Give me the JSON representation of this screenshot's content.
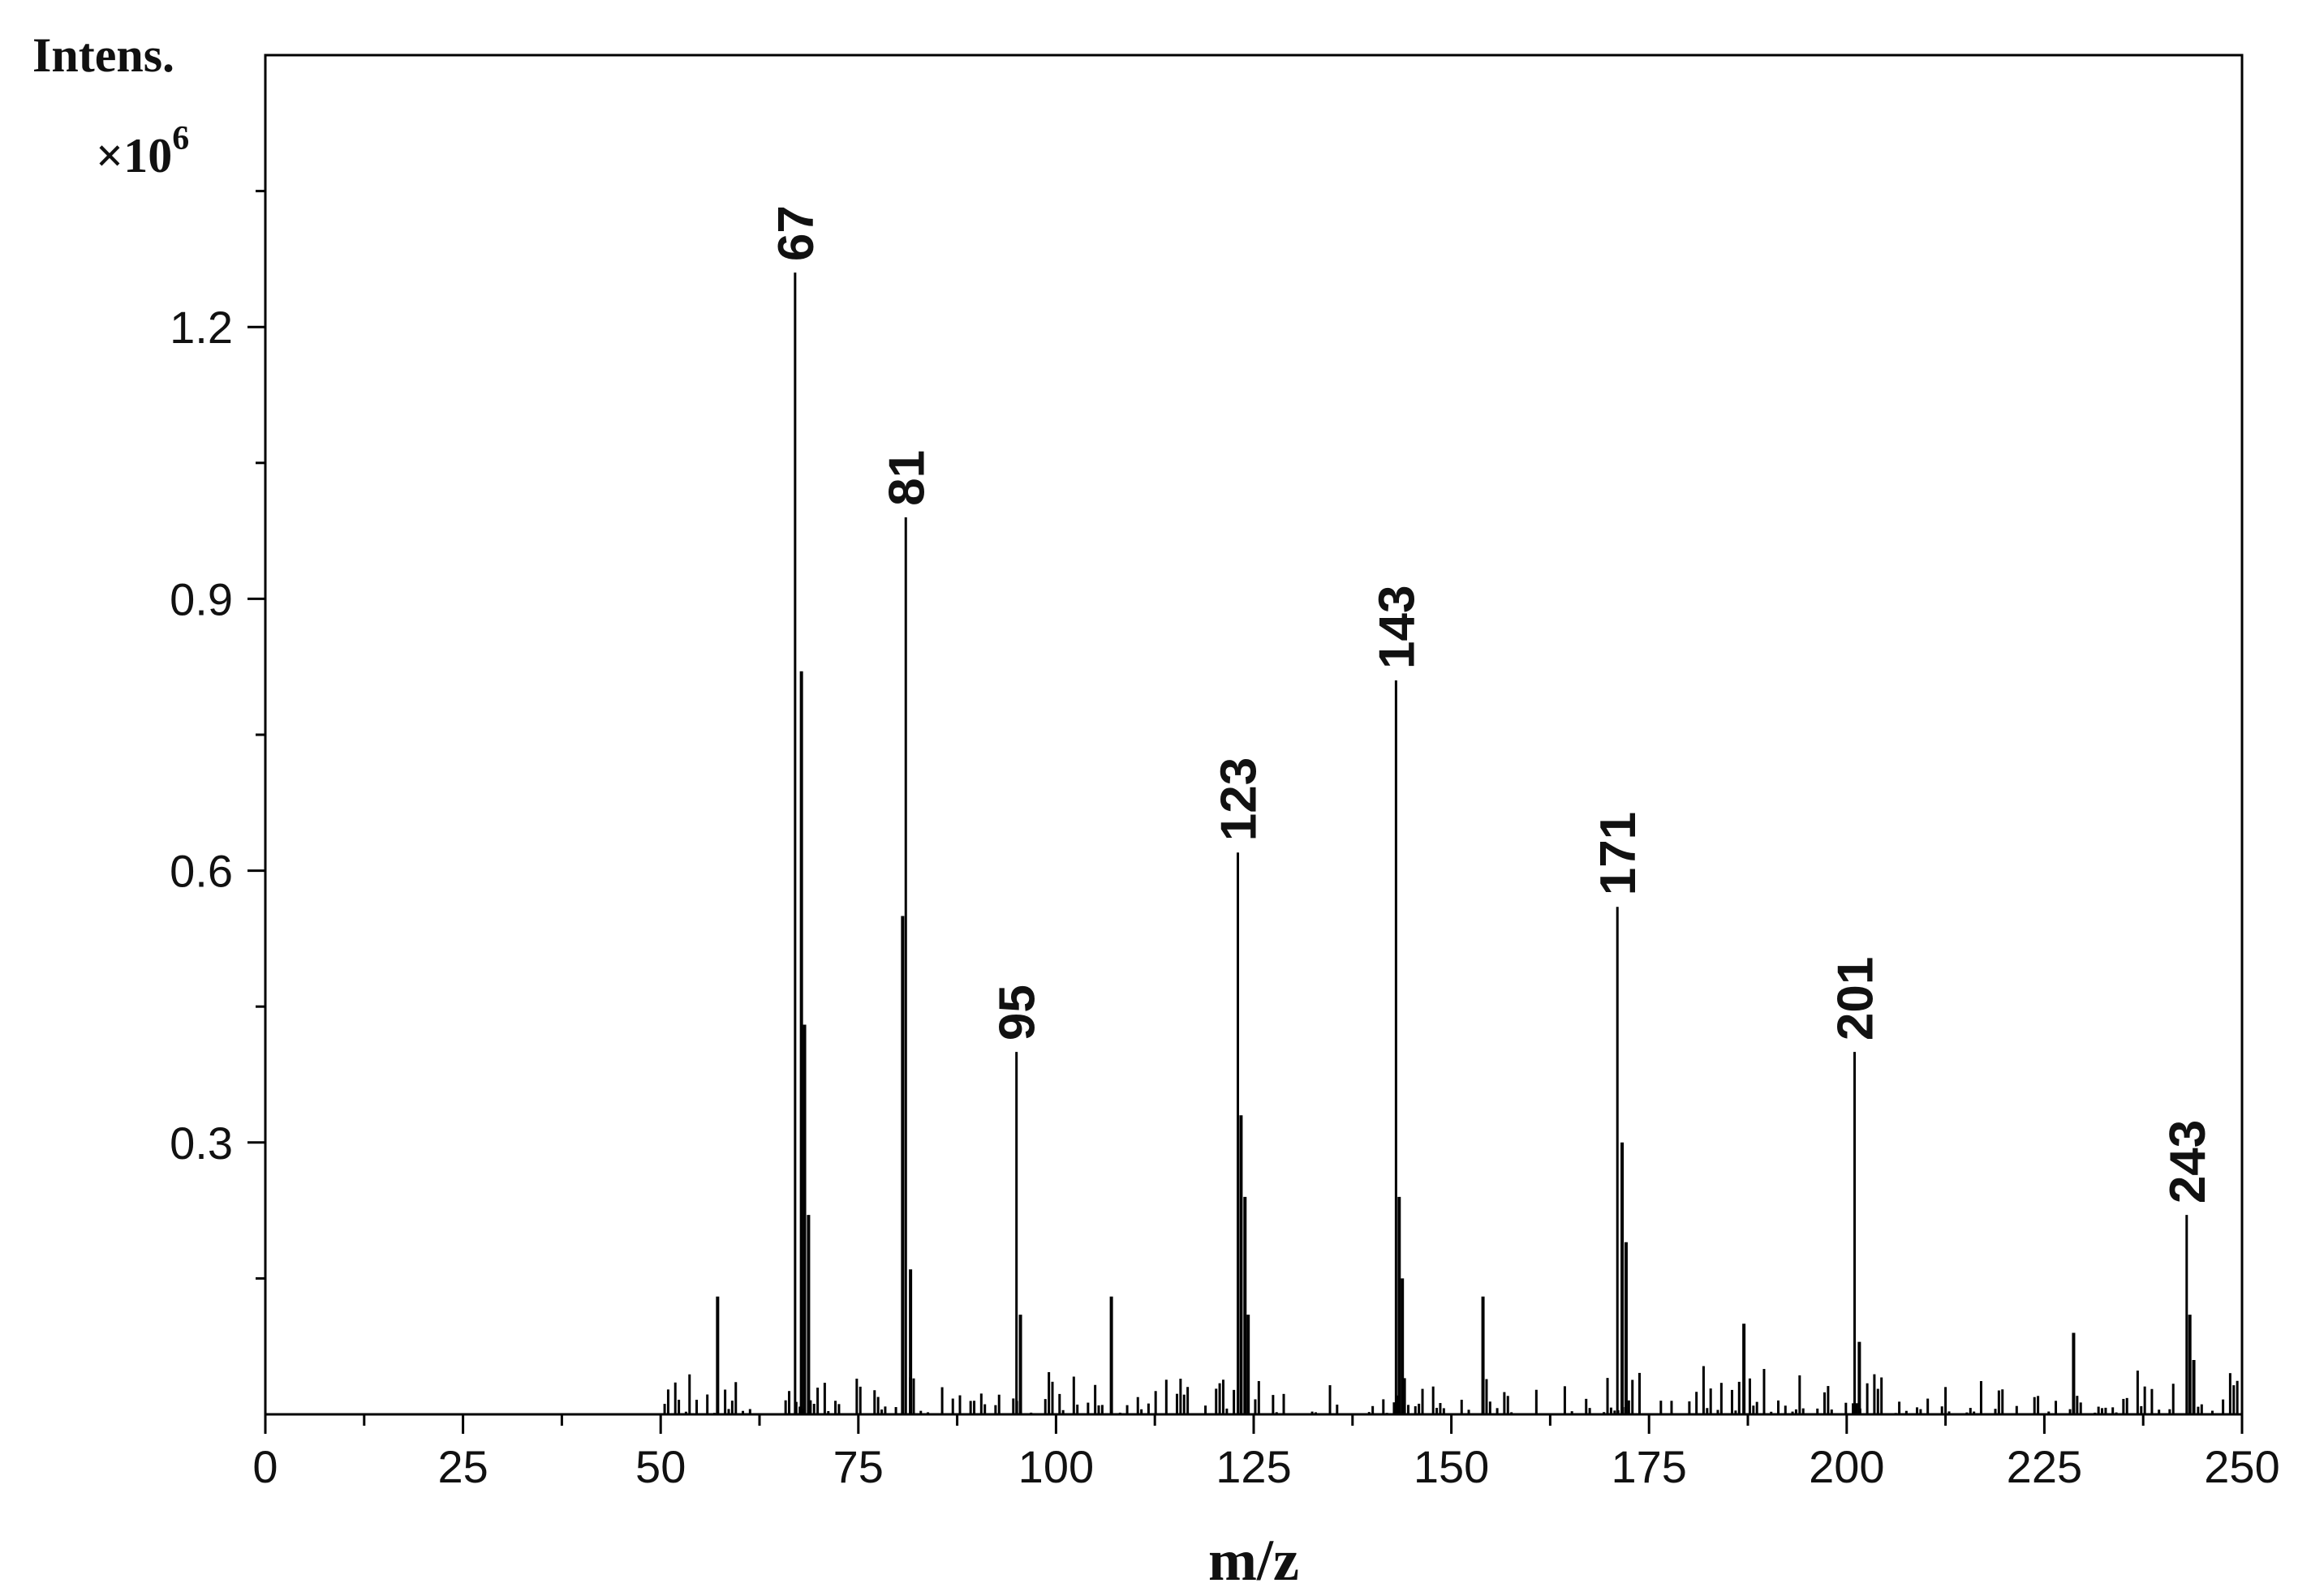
{
  "chart_data": {
    "type": "bar",
    "title": "",
    "ylabel": "Intens.",
    "yscale_label": "×10",
    "yscale_exponent": "6",
    "xlabel": "m/z",
    "xlim": [
      0,
      250
    ],
    "ylim": [
      0,
      1.5
    ],
    "x_ticks": [
      "0",
      "25",
      "50",
      "75",
      "100",
      "125",
      "150",
      "175",
      "200",
      "225",
      "250"
    ],
    "y_ticks": [
      "0.3",
      "0.6",
      "0.9",
      "1.2"
    ],
    "grid": false,
    "legend": "none",
    "labeled_peaks": [
      {
        "mz": 67,
        "intensity": 1.26,
        "label": "67"
      },
      {
        "mz": 81,
        "intensity": 0.99,
        "label": "81"
      },
      {
        "mz": 95,
        "intensity": 0.4,
        "label": "95"
      },
      {
        "mz": 123,
        "intensity": 0.62,
        "label": "123"
      },
      {
        "mz": 143,
        "intensity": 0.81,
        "label": "143"
      },
      {
        "mz": 171,
        "intensity": 0.56,
        "label": "171"
      },
      {
        "mz": 201,
        "intensity": 0.4,
        "label": "201"
      },
      {
        "mz": 243,
        "intensity": 0.22,
        "label": "243"
      }
    ],
    "other_peaks": [
      {
        "mz": 57.2,
        "intensity": 0.13
      },
      {
        "mz": 67.8,
        "intensity": 0.82
      },
      {
        "mz": 68.2,
        "intensity": 0.43
      },
      {
        "mz": 68.7,
        "intensity": 0.22
      },
      {
        "mz": 80.6,
        "intensity": 0.55
      },
      {
        "mz": 81.6,
        "intensity": 0.16
      },
      {
        "mz": 95.5,
        "intensity": 0.11
      },
      {
        "mz": 107,
        "intensity": 0.13
      },
      {
        "mz": 123.4,
        "intensity": 0.33
      },
      {
        "mz": 123.9,
        "intensity": 0.24
      },
      {
        "mz": 124.3,
        "intensity": 0.11
      },
      {
        "mz": 143.4,
        "intensity": 0.24
      },
      {
        "mz": 143.8,
        "intensity": 0.15
      },
      {
        "mz": 154,
        "intensity": 0.13
      },
      {
        "mz": 171.6,
        "intensity": 0.3
      },
      {
        "mz": 172.1,
        "intensity": 0.19
      },
      {
        "mz": 187,
        "intensity": 0.1
      },
      {
        "mz": 201.6,
        "intensity": 0.08
      },
      {
        "mz": 228.7,
        "intensity": 0.09
      },
      {
        "mz": 243.4,
        "intensity": 0.11
      },
      {
        "mz": 243.9,
        "intensity": 0.06
      }
    ],
    "noise_range": [
      50,
      250
    ],
    "noise_max": 0.06,
    "colors": {
      "line": "#000000",
      "background": "#ffffff"
    }
  }
}
